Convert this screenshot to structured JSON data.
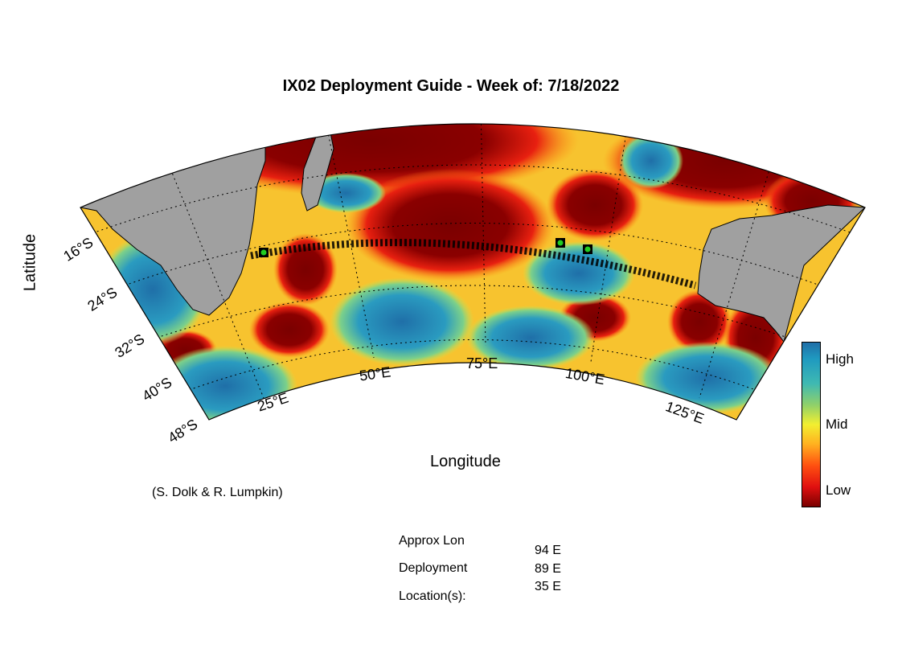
{
  "title": "IX02 Deployment Guide - Week of: 7/18/2022",
  "axes": {
    "ylabel": "Latitude",
    "xlabel": "Longitude",
    "lat_ticks": [
      "16°S",
      "24°S",
      "32°S",
      "40°S",
      "48°S"
    ],
    "lon_ticks": [
      "25°E",
      "50°E",
      "75°E",
      "100°E",
      "125°E"
    ]
  },
  "credit": "(S. Dolk & R. Lumpkin)",
  "colorbar": {
    "high": "High",
    "mid": "Mid",
    "low": "Low"
  },
  "deployment": {
    "label_line1": "Approx Lon",
    "label_line2": "Deployment",
    "label_line3": "Location(s):",
    "values": [
      "94 E",
      "89 E",
      "35 E"
    ]
  },
  "colors": {
    "land": "#a0a0a0",
    "high": "#1f6fa8",
    "mid": "#f2ef30",
    "low": "#7a0000",
    "deploy_marker": "#22cc22"
  }
}
